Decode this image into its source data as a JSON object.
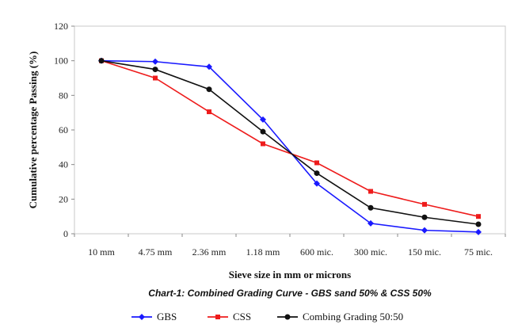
{
  "chart_data": {
    "type": "line",
    "categories": [
      "10 mm",
      "4.75 mm",
      "2.36 mm",
      "1.18 mm",
      "600 mic.",
      "300 mic.",
      "150 mic.",
      "75 mic."
    ],
    "series": [
      {
        "name": "GBS",
        "color": "#1a1aff",
        "marker": "diamond",
        "values": [
          100,
          99.5,
          96.5,
          66,
          29,
          6,
          2,
          1
        ]
      },
      {
        "name": "CSS",
        "color": "#ee1c1c",
        "marker": "square",
        "values": [
          100,
          90,
          70.5,
          52,
          41,
          24.5,
          17,
          10
        ]
      },
      {
        "name": "Combing Grading 50:50",
        "color": "#111111",
        "marker": "circle",
        "values": [
          100,
          95,
          83.5,
          59,
          35,
          15,
          9.5,
          5.5
        ]
      }
    ],
    "xlabel": "Sieve size in mm or microns",
    "ylabel": "Cumulative percentage Passing (%)",
    "ylim": [
      0,
      120
    ],
    "yticks": [
      0,
      20,
      40,
      60,
      80,
      100,
      120
    ],
    "caption": "Chart-1: Combined Grading Curve - GBS sand 50% & CSS 50%",
    "legend_position": "bottom",
    "grid": false
  }
}
